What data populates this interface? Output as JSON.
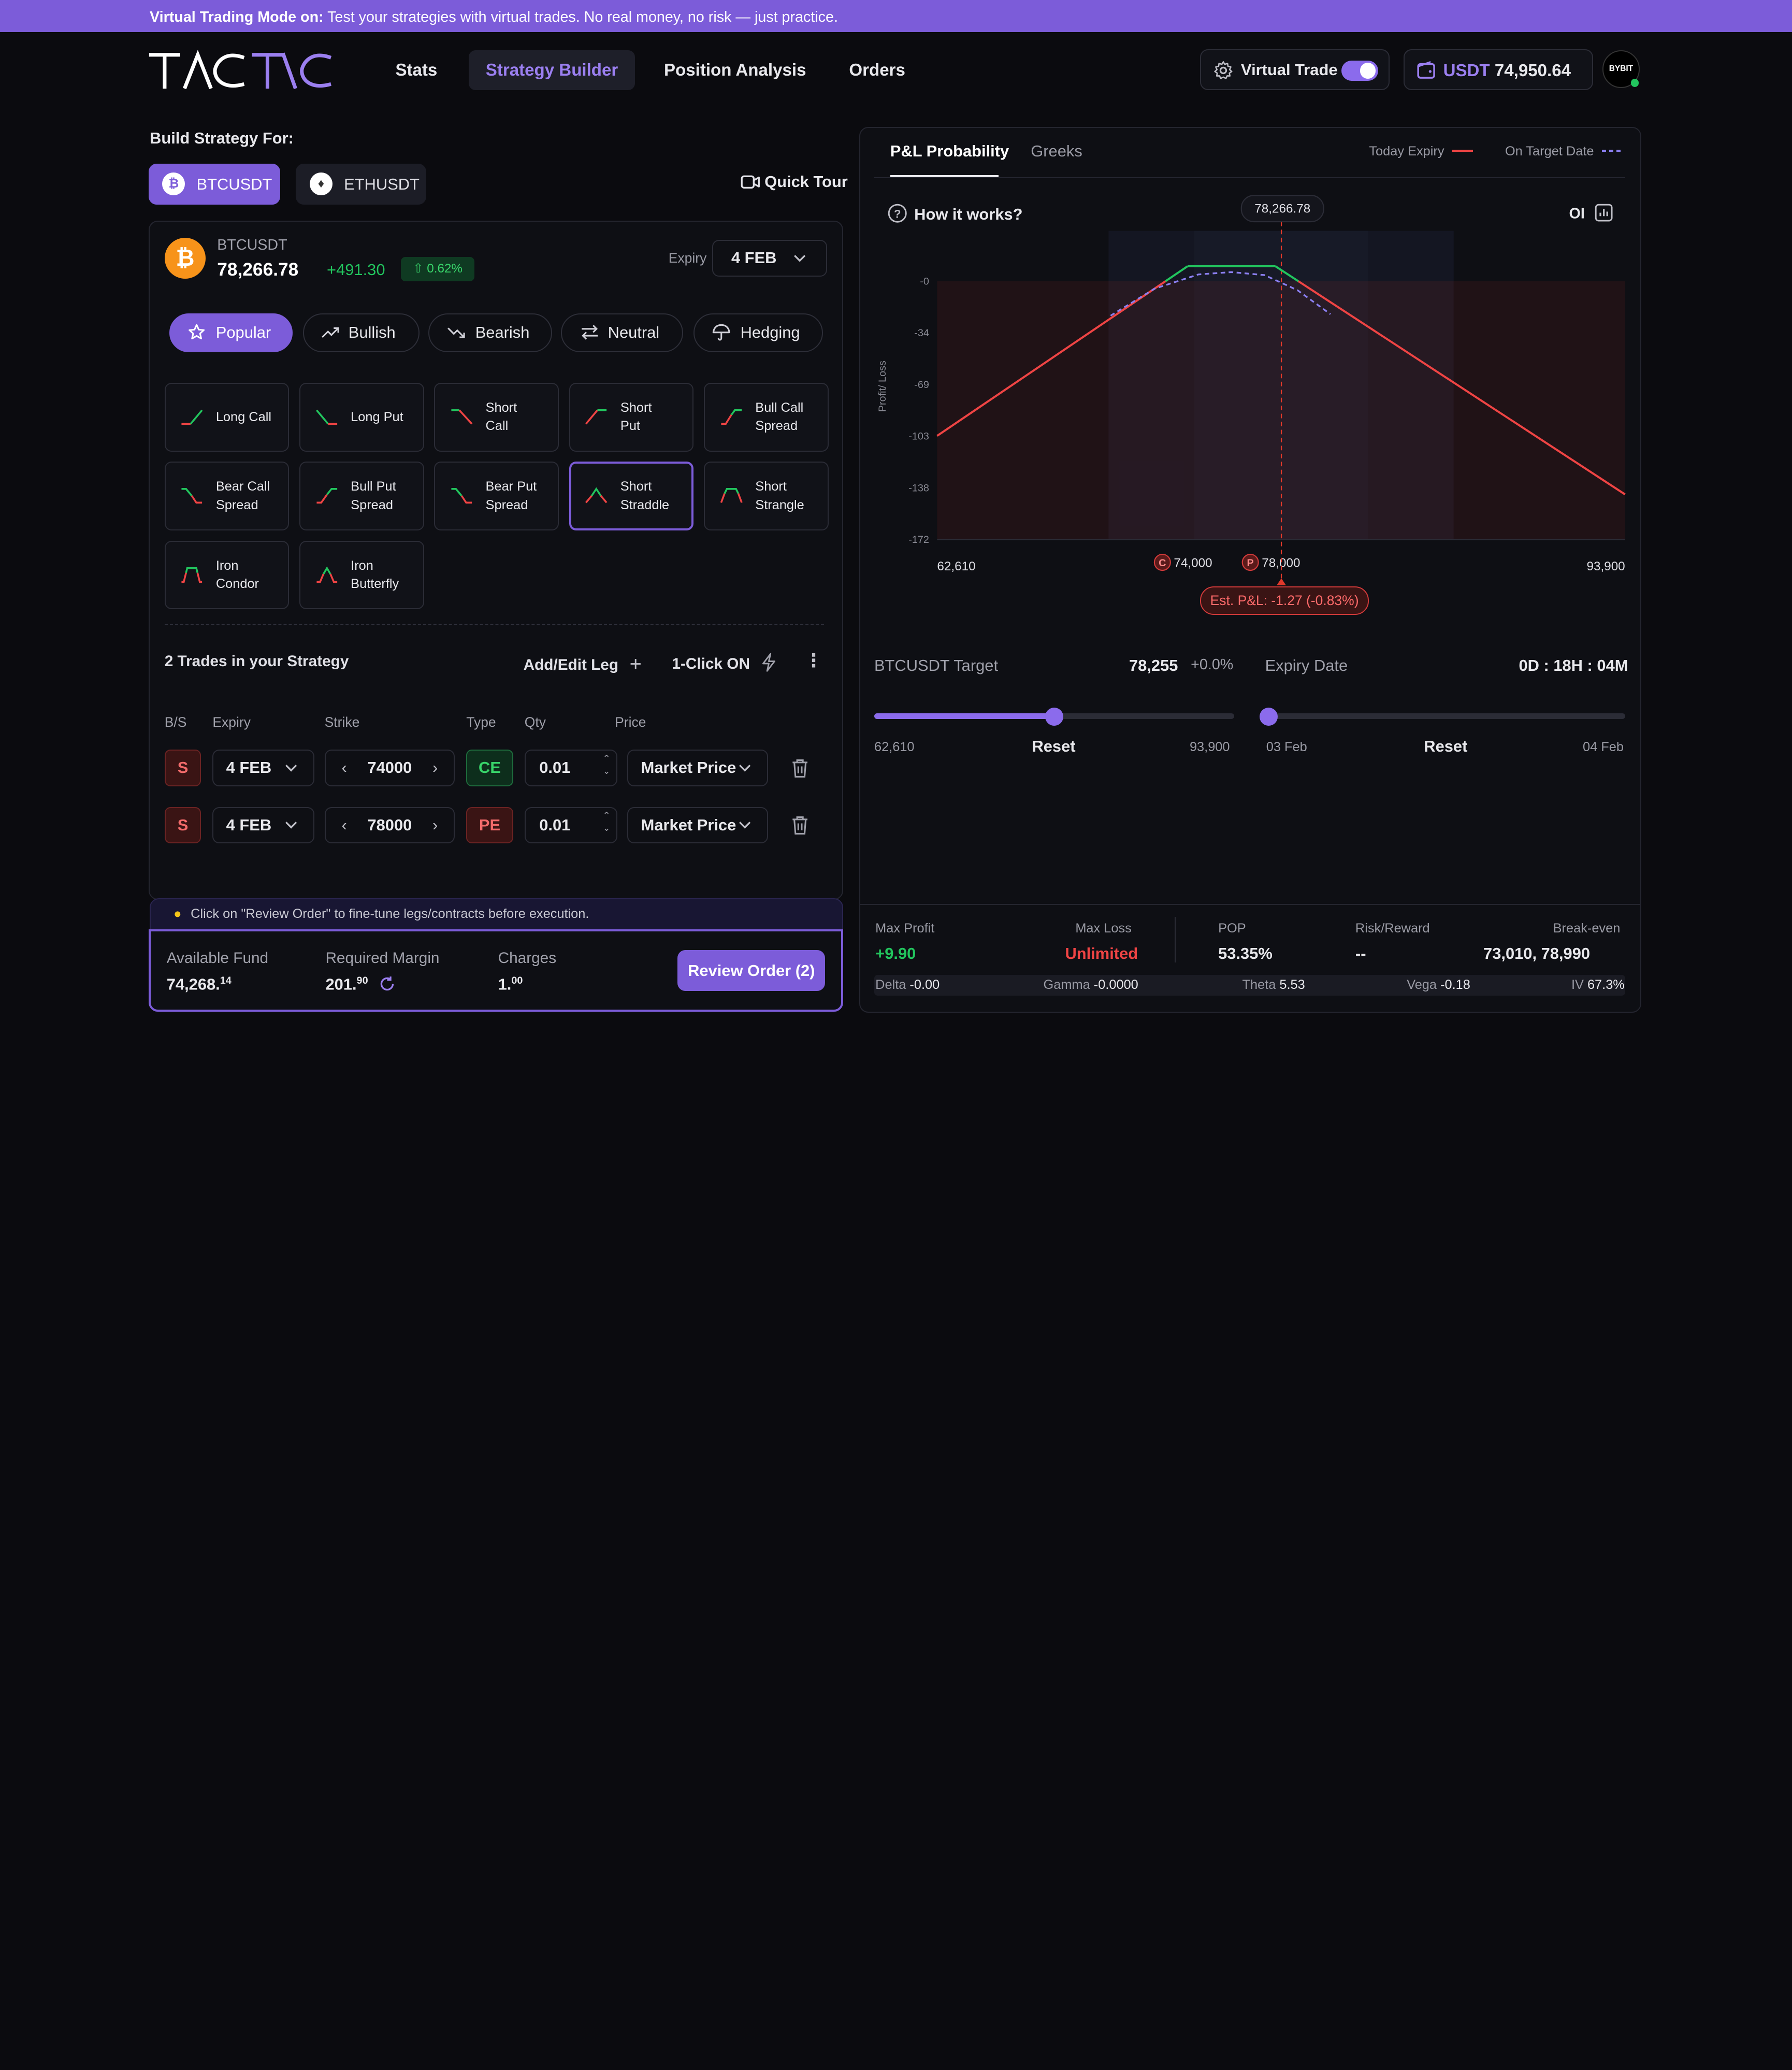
{
  "banner": {
    "bold": "Virtual Trading Mode on:",
    "text": "Test your strategies with virtual trades. No real money, no risk — just practice."
  },
  "logo": {
    "text": "TACTIC"
  },
  "nav": {
    "items": [
      "Stats",
      "Strategy Builder",
      "Position Analysis",
      "Orders"
    ],
    "active": "Strategy Builder"
  },
  "header": {
    "virtual_trade_label": "Virtual Trade",
    "virtual_trade_on": true,
    "wallet_currency": "USDT",
    "wallet_balance": "74,950.64",
    "avatar_text": "BYBIT"
  },
  "build": {
    "label": "Build Strategy For:",
    "assets": [
      "BTCUSDT",
      "ETHUSDT"
    ],
    "active_asset": "BTCUSDT",
    "quick_tour": "Quick Tour"
  },
  "ticker": {
    "symbol": "BTCUSDT",
    "price": "78,266.78",
    "change": "+491.30",
    "change_pct": "0.62%",
    "expiry_label": "Expiry",
    "expiry_value": "4 FEB"
  },
  "categories": {
    "items": [
      "Popular",
      "Bullish",
      "Bearish",
      "Neutral",
      "Hedging"
    ],
    "active": "Popular"
  },
  "strategies": [
    {
      "label": "Long Call",
      "glyph": "long-call-icon"
    },
    {
      "label": "Long Put",
      "glyph": "long-put-icon"
    },
    {
      "label": "Short\nCall",
      "glyph": "short-call-icon"
    },
    {
      "label": "Short\nPut",
      "glyph": "short-put-icon"
    },
    {
      "label": "Bull Call\nSpread",
      "glyph": "bull-call-spread-icon"
    },
    {
      "label": "Bear Call\nSpread",
      "glyph": "bear-call-spread-icon"
    },
    {
      "label": "Bull Put\nSpread",
      "glyph": "bull-put-spread-icon"
    },
    {
      "label": "Bear Put\nSpread",
      "glyph": "bear-put-spread-icon"
    },
    {
      "label": "Short\nStraddle",
      "glyph": "short-straddle-icon",
      "selected": true
    },
    {
      "label": "Short\nStrangle",
      "glyph": "short-strangle-icon"
    },
    {
      "label": "Iron\nCondor",
      "glyph": "iron-condor-icon"
    },
    {
      "label": "Iron\nButterfly",
      "glyph": "iron-butterfly-icon"
    }
  ],
  "trades": {
    "title": "2 Trades in your Strategy",
    "add_edit": "Add/Edit Leg",
    "one_click": "1-Click ON",
    "columns": [
      "B/S",
      "Expiry",
      "Strike",
      "Type",
      "Qty",
      "Price"
    ],
    "rows": [
      {
        "side": "S",
        "expiry": "4 FEB",
        "strike": "74000",
        "type": "CE",
        "qty": "0.01",
        "price": "Market Price"
      },
      {
        "side": "S",
        "expiry": "4 FEB",
        "strike": "78000",
        "type": "PE",
        "qty": "0.01",
        "price": "Market Price"
      }
    ]
  },
  "hint": "Click on \"Review Order\" to fine-tune legs/contracts before execution.",
  "footer": {
    "available_fund_label": "Available Fund",
    "available_fund_int": "74,268.",
    "available_fund_dec": "14",
    "required_margin_label": "Required Margin",
    "required_margin_int": "201.",
    "required_margin_dec": "90",
    "charges_label": "Charges",
    "charges_int": "1.",
    "charges_dec": "00",
    "review_button": "Review Order (2)"
  },
  "right": {
    "tabs": [
      "P&L Probability",
      "Greeks"
    ],
    "active_tab": "P&L Probability",
    "legend_today": "Today Expiry",
    "legend_target": "On Target Date",
    "how_it_works": "How it works?",
    "oi_label": "OI",
    "pnl_badge": "Est. P&L: -1.27 (-0.83%)",
    "target_label": "BTCUSDT Target",
    "target_value": "78,255",
    "target_pct": "+0.0%",
    "target_min": "62,610",
    "target_max": "93,900",
    "target_reset": "Reset",
    "target_fraction": 0.5,
    "expiry_label": "Expiry Date",
    "expiry_countdown": "0D : 18H : 04M",
    "expiry_min": "03 Feb",
    "expiry_max": "04 Feb",
    "expiry_reset": "Reset",
    "expiry_fraction": 0.0
  },
  "stats": {
    "max_profit_label": "Max Profit",
    "max_profit": "+9.90",
    "max_loss_label": "Max Loss",
    "max_loss": "Unlimited",
    "pop_label": "POP",
    "pop": "53.35%",
    "rr_label": "Risk/Reward",
    "rr": "--",
    "be_label": "Break-even",
    "be": "73,010, 78,990",
    "delta_label": "Delta",
    "delta": "-0.00",
    "gamma_label": "Gamma",
    "gamma": "-0.0000",
    "theta_label": "Theta",
    "theta": "5.53",
    "vega_label": "Vega",
    "vega": "-0.18",
    "iv_label": "IV",
    "iv": "67.3%"
  },
  "colors": {
    "accent": "#7c5cd9",
    "profit": "#22c55e",
    "loss": "#ef4444",
    "target_line": "#8b7ff0"
  },
  "chart_data": {
    "type": "line",
    "ylabel": "Profit/ Loss",
    "yticks": [
      "-0",
      "-34",
      "-69",
      "-103",
      "-138",
      "-172"
    ],
    "ylim": [
      -172,
      0
    ],
    "xlim": [
      62610,
      93900
    ],
    "x_labels": [
      "62,610",
      "74,000",
      "78,000",
      "93,900"
    ],
    "current_price_label": "78,266.78",
    "current_price": 78266.78,
    "strike_markers": [
      {
        "tag": "C",
        "strike": 74000
      },
      {
        "tag": "P",
        "strike": 78000
      }
    ],
    "series": [
      {
        "name": "Today Expiry",
        "style": "solid",
        "x": [
          62610,
          74000,
          78000,
          93900
        ],
        "y": [
          -103,
          9.9,
          9.9,
          -142
        ]
      },
      {
        "name": "On Target Date",
        "style": "dashed",
        "x": [
          70500,
          72500,
          74500,
          76000,
          77500,
          79000,
          80500
        ],
        "y": [
          -23,
          -5,
          4.5,
          6,
          4,
          -6,
          -22
        ]
      }
    ]
  }
}
